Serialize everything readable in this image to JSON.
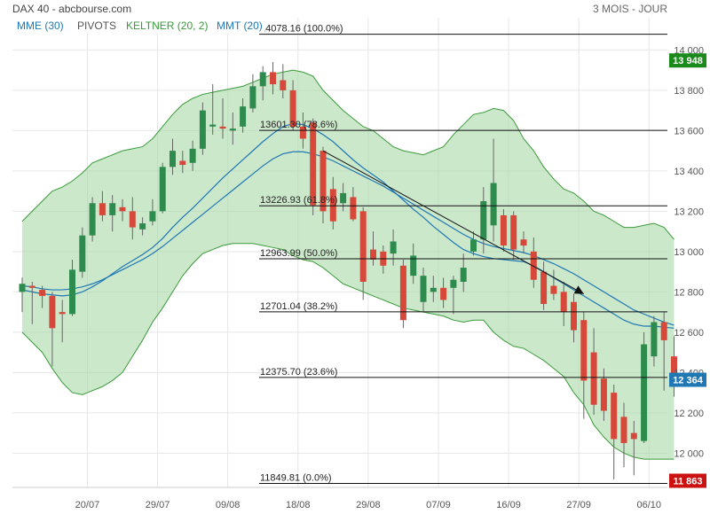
{
  "header": {
    "title": "DAX 40 - abcbourse.com",
    "period": "3 MOIS - JOUR",
    "legend": [
      {
        "label": "MME (30)",
        "color": "#1f77b4"
      },
      {
        "label": "PIVOTS",
        "color": "#555555"
      },
      {
        "label": "KELTNER (20, 2)",
        "color": "#3a9a3a"
      },
      {
        "label": "MMT (20)",
        "color": "#1f77b4"
      }
    ]
  },
  "chart_data": {
    "type": "candlestick",
    "ylim": [
      11830,
      14160
    ],
    "yticks": [
      {
        "value": 14000,
        "label": "14 000"
      },
      {
        "value": 13800,
        "label": "13 800"
      },
      {
        "value": 13600,
        "label": "13 600"
      },
      {
        "value": 13400,
        "label": "13 400"
      },
      {
        "value": 13200,
        "label": "13 200"
      },
      {
        "value": 13000,
        "label": "13 000"
      },
      {
        "value": 12800,
        "label": "12 800"
      },
      {
        "value": 12600,
        "label": "12 600"
      },
      {
        "value": 12400,
        "label": "12 400"
      },
      {
        "value": 12200,
        "label": "12 200"
      },
      {
        "value": 12000,
        "label": "12 000"
      }
    ],
    "xticks": [
      {
        "index": 6.5,
        "label": "20/07"
      },
      {
        "index": 13.5,
        "label": "29/07"
      },
      {
        "index": 20.5,
        "label": "09/08"
      },
      {
        "index": 27.5,
        "label": "18/08"
      },
      {
        "index": 34.5,
        "label": "29/08"
      },
      {
        "index": 41.5,
        "label": "07/09"
      },
      {
        "index": 48.5,
        "label": "16/09"
      },
      {
        "index": 55.5,
        "label": "27/09"
      },
      {
        "index": 62.5,
        "label": "06/10"
      }
    ],
    "candles": [
      [
        12800,
        12870,
        12700,
        12840
      ],
      [
        12830,
        12850,
        12640,
        12820
      ],
      [
        12810,
        12830,
        12720,
        12780
      ],
      [
        12780,
        12800,
        12430,
        12620
      ],
      [
        12700,
        12760,
        12550,
        12690
      ],
      [
        12690,
        12960,
        12680,
        12910
      ],
      [
        12900,
        13120,
        12870,
        13080
      ],
      [
        13080,
        13270,
        13050,
        13240
      ],
      [
        13240,
        13300,
        13150,
        13180
      ],
      [
        13180,
        13280,
        13100,
        13240
      ],
      [
        13220,
        13260,
        13150,
        13200
      ],
      [
        13200,
        13270,
        13060,
        13120
      ],
      [
        13110,
        13170,
        13080,
        13140
      ],
      [
        13150,
        13260,
        13130,
        13200
      ],
      [
        13200,
        13440,
        13190,
        13420
      ],
      [
        13420,
        13560,
        13380,
        13500
      ],
      [
        13450,
        13500,
        13390,
        13430
      ],
      [
        13440,
        13550,
        13400,
        13510
      ],
      [
        13510,
        13740,
        13480,
        13700
      ],
      [
        13620,
        13830,
        13580,
        13630
      ],
      [
        13620,
        13760,
        13560,
        13610
      ],
      [
        13600,
        13690,
        13530,
        13610
      ],
      [
        13620,
        13760,
        13590,
        13720
      ],
      [
        13710,
        13880,
        13690,
        13820
      ],
      [
        13820,
        13920,
        13750,
        13890
      ],
      [
        13890,
        13940,
        13780,
        13830
      ],
      [
        13850,
        13930,
        13760,
        13800
      ],
      [
        13800,
        13850,
        13600,
        13620
      ],
      [
        13620,
        13690,
        13510,
        13560
      ],
      [
        13640,
        13660,
        13180,
        13230
      ],
      [
        13500,
        13520,
        13140,
        13200
      ],
      [
        13310,
        13370,
        13110,
        13150
      ],
      [
        13240,
        13340,
        13200,
        13290
      ],
      [
        13270,
        13320,
        13150,
        13160
      ],
      [
        13200,
        13220,
        12760,
        12850
      ],
      [
        13010,
        13100,
        12930,
        12960
      ],
      [
        13000,
        13030,
        12890,
        12930
      ],
      [
        12990,
        13110,
        12930,
        13050
      ],
      [
        12930,
        12960,
        12620,
        12660
      ],
      [
        12880,
        13040,
        12840,
        12980
      ],
      [
        12750,
        12920,
        12700,
        12880
      ],
      [
        12800,
        12880,
        12750,
        12820
      ],
      [
        12820,
        12870,
        12720,
        12760
      ],
      [
        12820,
        12880,
        12690,
        12860
      ],
      [
        12850,
        12990,
        12800,
        12920
      ],
      [
        13000,
        13100,
        12980,
        13060
      ],
      [
        13060,
        13320,
        12990,
        13250
      ],
      [
        13130,
        13560,
        13050,
        13340
      ],
      [
        13180,
        13210,
        13000,
        13030
      ],
      [
        13180,
        13200,
        12960,
        13010
      ],
      [
        13060,
        13100,
        12990,
        13030
      ],
      [
        13000,
        13070,
        12820,
        12860
      ],
      [
        12900,
        12950,
        12710,
        12740
      ],
      [
        12830,
        12910,
        12760,
        12790
      ],
      [
        12800,
        12850,
        12630,
        12700
      ],
      [
        12750,
        12790,
        12550,
        12610
      ],
      [
        12660,
        12700,
        12170,
        12360
      ],
      [
        12500,
        12620,
        12190,
        12240
      ],
      [
        12370,
        12420,
        12160,
        12210
      ],
      [
        12300,
        12340,
        11870,
        12070
      ],
      [
        12180,
        12250,
        11930,
        12050
      ],
      [
        12100,
        12160,
        11890,
        12070
      ],
      [
        12060,
        12600,
        12050,
        12540
      ],
      [
        12480,
        12680,
        12430,
        12650
      ],
      [
        12650,
        12700,
        12310,
        12560
      ],
      [
        12480,
        12580,
        12280,
        12364
      ]
    ],
    "mmt20": [
      12810,
      12800,
      12790,
      12785,
      12780,
      12785,
      12800,
      12825,
      12855,
      12890,
      12925,
      12955,
      12985,
      13020,
      13065,
      13120,
      13170,
      13215,
      13265,
      13315,
      13365,
      13410,
      13455,
      13500,
      13545,
      13585,
      13620,
      13635,
      13630,
      13610,
      13580,
      13545,
      13500,
      13455,
      13415,
      13380,
      13345,
      13300,
      13255,
      13210,
      13170,
      13125,
      13085,
      13045,
      13010,
      12990,
      12975,
      12965,
      12960,
      12955,
      12950,
      12930,
      12900,
      12870,
      12840,
      12810,
      12780,
      12750,
      12720,
      12690,
      12660,
      12640,
      12630,
      12630,
      12625,
      12620
    ],
    "mme30": [
      12830,
      12825,
      12815,
      12810,
      12810,
      12815,
      12825,
      12840,
      12860,
      12885,
      12910,
      12935,
      12960,
      12990,
      13025,
      13065,
      13105,
      13145,
      13185,
      13225,
      13265,
      13305,
      13345,
      13385,
      13425,
      13460,
      13485,
      13495,
      13495,
      13485,
      13470,
      13450,
      13425,
      13400,
      13375,
      13350,
      13325,
      13295,
      13265,
      13235,
      13205,
      13175,
      13145,
      13115,
      13085,
      13060,
      13040,
      13025,
      13015,
      13005,
      12995,
      12980,
      12960,
      12940,
      12915,
      12890,
      12860,
      12830,
      12800,
      12770,
      12740,
      12710,
      12690,
      12670,
      12650,
      12635
    ],
    "keltner_upper": [
      13150,
      13200,
      13250,
      13300,
      13320,
      13350,
      13390,
      13440,
      13460,
      13480,
      13500,
      13510,
      13520,
      13560,
      13620,
      13680,
      13730,
      13760,
      13780,
      13790,
      13800,
      13810,
      13820,
      13840,
      13860,
      13880,
      13890,
      13900,
      13890,
      13870,
      13800,
      13750,
      13700,
      13660,
      13620,
      13600,
      13560,
      13520,
      13500,
      13490,
      13480,
      13500,
      13520,
      13580,
      13630,
      13680,
      13690,
      13710,
      13700,
      13650,
      13560,
      13500,
      13420,
      13360,
      13310,
      13290,
      13250,
      13200,
      13180,
      13150,
      13120,
      13120,
      13130,
      13140,
      13120,
      13060
    ],
    "keltner_lower": [
      12600,
      12550,
      12500,
      12420,
      12350,
      12300,
      12290,
      12310,
      12330,
      12360,
      12400,
      12480,
      12560,
      12650,
      12720,
      12800,
      12880,
      12940,
      12990,
      13010,
      13030,
      13040,
      13040,
      13040,
      13030,
      13020,
      13010,
      12980,
      12960,
      12950,
      12920,
      12880,
      12840,
      12820,
      12800,
      12780,
      12760,
      12740,
      12720,
      12710,
      12700,
      12690,
      12680,
      12660,
      12650,
      12660,
      12660,
      12600,
      12560,
      12530,
      12520,
      12490,
      12460,
      12420,
      12380,
      12300,
      12240,
      12140,
      12080,
      12030,
      12000,
      11980,
      11970,
      11970,
      11970,
      11970
    ],
    "fib_levels": [
      {
        "value": 14078.16,
        "label": "14078.16  (100.0%)"
      },
      {
        "value": 13601.3,
        "label": "13601.30  (78.6%)"
      },
      {
        "value": 13226.93,
        "label": "13226.93  (61.8%)"
      },
      {
        "value": 12963.99,
        "label": "12963.99  (50.0%)"
      },
      {
        "value": 12701.04,
        "label": "12701.04  (38.2%)"
      },
      {
        "value": 12375.7,
        "label": "12375.70  (23.6%)"
      },
      {
        "value": 11849.81,
        "label": "11849.81  (0.0%)"
      }
    ],
    "trend_arrow": {
      "from": [
        30,
        13500
      ],
      "to": [
        56,
        12790
      ]
    },
    "price_badges": [
      {
        "value": 13948,
        "label": "13 948",
        "color": "#1a8a1a"
      },
      {
        "value": 12364,
        "label": "12 364",
        "color": "#1f77b4"
      },
      {
        "value": 11863,
        "label": "11 863",
        "color": "#cc1111"
      }
    ],
    "colors": {
      "up": "#2e8b4e",
      "down": "#d6493a",
      "keltner_fill": "#a8d8a8",
      "keltner_line": "#3a9a3a",
      "ma": "#1f77b4",
      "fib_line": "#111111",
      "grid": "#e6e6e6"
    }
  }
}
